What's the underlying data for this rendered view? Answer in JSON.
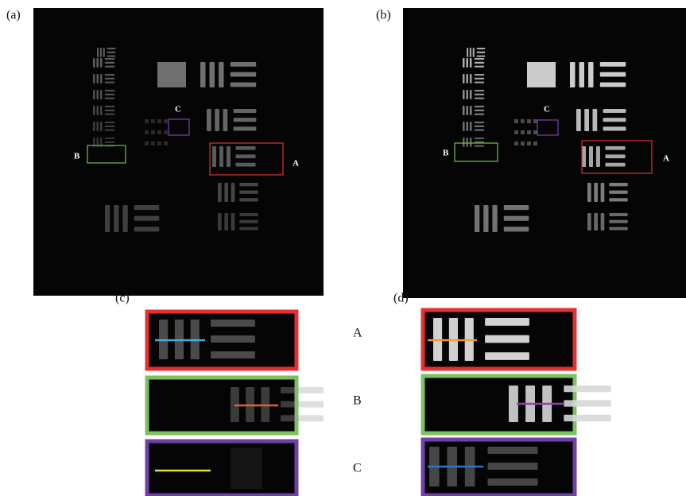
{
  "panel_labels": [
    "(a)",
    "(b)",
    "(c)",
    "(d)"
  ],
  "panel_a_regions": [
    "A",
    "B",
    "C"
  ],
  "panel_b_regions": [
    "A",
    "B",
    "C"
  ],
  "row_labels": [
    "A",
    "B",
    "C"
  ]
}
